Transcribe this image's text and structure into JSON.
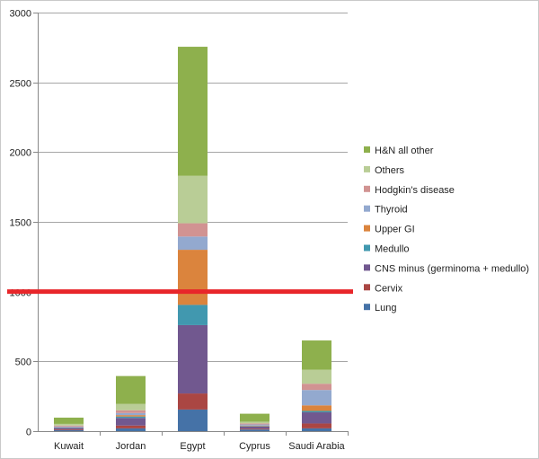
{
  "chart_data": {
    "type": "bar",
    "stacked": true,
    "categories": [
      "Kuwait",
      "Jordan",
      "Egypt",
      "Cyprus",
      "Saudi Arabia"
    ],
    "ylim": [
      0,
      3000
    ],
    "yticks": [
      "0",
      "500",
      "1000",
      "1500",
      "2000",
      "2500",
      "3000"
    ],
    "ytick_values": [
      0,
      500,
      1000,
      1500,
      2000,
      2500,
      3000
    ],
    "grid": true,
    "legend": "right",
    "reference_line": {
      "value": 1000,
      "color": "#e8262a"
    },
    "series": [
      {
        "name": "Lung",
        "color": "#4572a7",
        "values": [
          8,
          20,
          155,
          12,
          20
        ]
      },
      {
        "name": "Cervix",
        "color": "#aa4643",
        "values": [
          5,
          20,
          115,
          6,
          35
        ]
      },
      {
        "name": "CNS minus (germinoma + medullo)",
        "color": "#71588f",
        "values": [
          10,
          55,
          490,
          15,
          80
        ]
      },
      {
        "name": "Medullo",
        "color": "#4198af",
        "values": [
          2,
          10,
          145,
          3,
          10
        ]
      },
      {
        "name": "Upper GI",
        "color": "#db843d",
        "values": [
          2,
          10,
          395,
          4,
          40
        ]
      },
      {
        "name": "Thyroid",
        "color": "#93a9cf",
        "values": [
          6,
          15,
          95,
          8,
          110
        ]
      },
      {
        "name": "Hodgkin's disease",
        "color": "#d19392",
        "values": [
          7,
          20,
          95,
          8,
          45
        ]
      },
      {
        "name": "Others",
        "color": "#b9cd96",
        "values": [
          12,
          45,
          340,
          12,
          100
        ]
      },
      {
        "name": "H&N all other",
        "color": "#8eb04d",
        "values": [
          45,
          200,
          925,
          57,
          210
        ]
      }
    ]
  }
}
